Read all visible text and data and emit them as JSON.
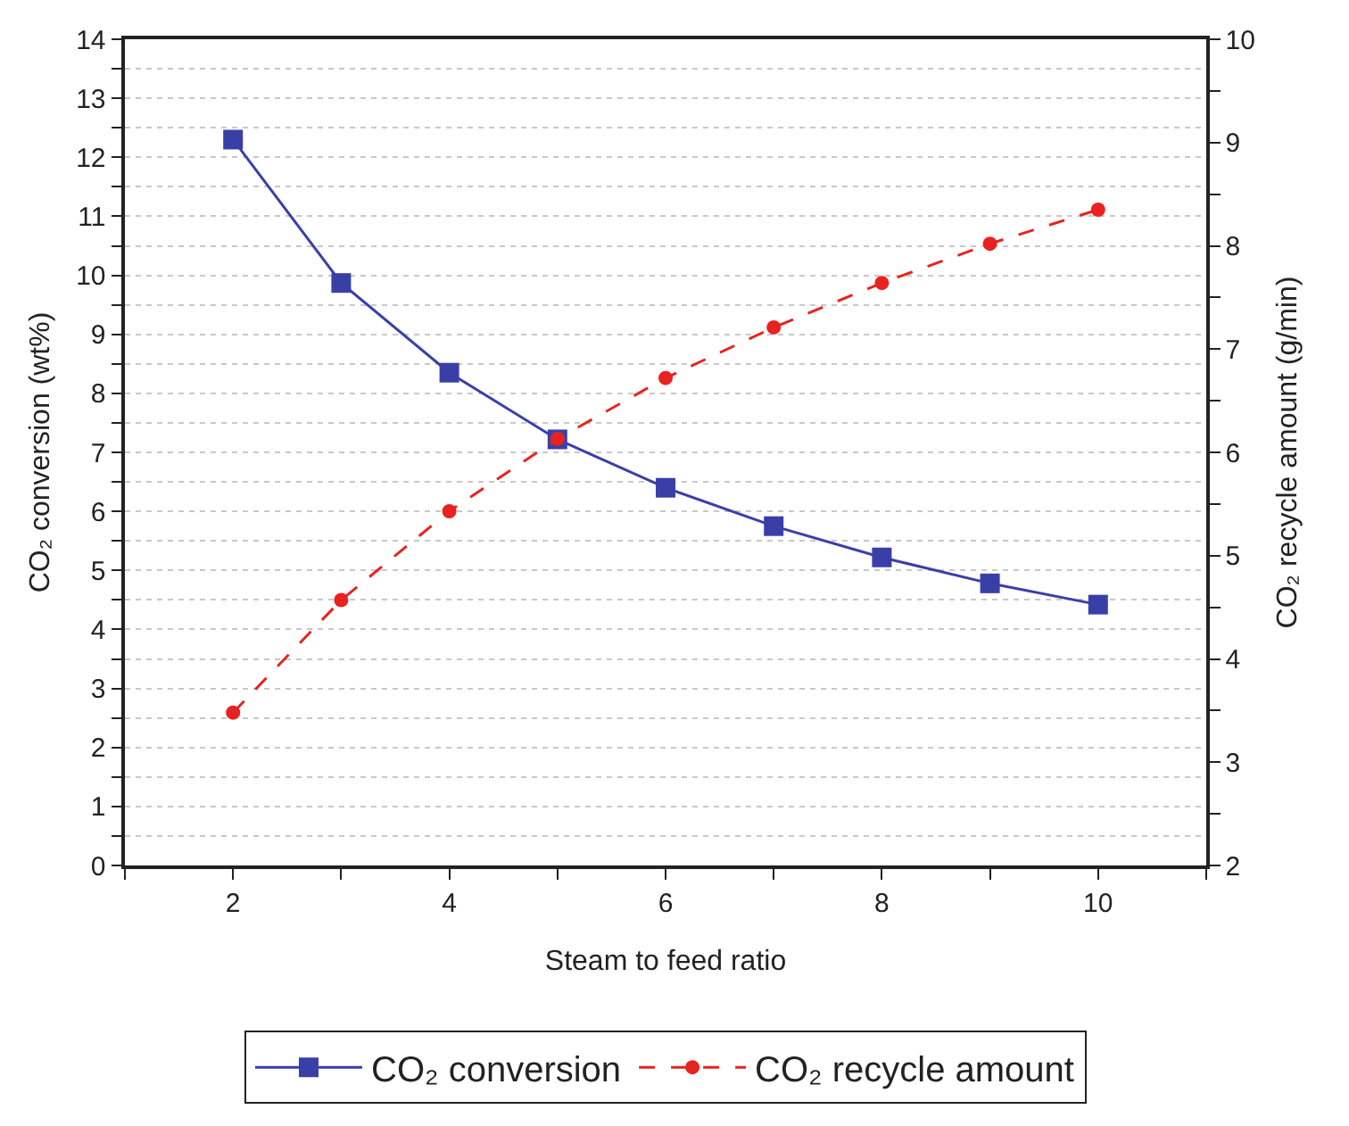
{
  "chart_data": {
    "type": "line",
    "xlabel": "Steam to feed ratio",
    "ylabel": "CO₂ conversion (wt%)",
    "y2label": "CO₂ recycle amount (g/min)",
    "x": [
      2,
      3,
      4,
      5,
      6,
      7,
      8,
      9,
      10
    ],
    "series": [
      {
        "name": "CO₂ conversion",
        "color": "#3a3fa8",
        "values": [
          12.3,
          9.87,
          8.35,
          7.22,
          6.4,
          5.75,
          5.22,
          4.78,
          4.42
        ],
        "marker": "square",
        "line_style": "solid"
      },
      {
        "name": "CO₂ recycle amount",
        "color": "#e8231f",
        "values": [
          3.48,
          4.57,
          5.43,
          6.13,
          6.72,
          7.21,
          7.64,
          8.02,
          8.35
        ],
        "marker": "circle",
        "line_style": "dashed",
        "axis": "y2"
      }
    ],
    "xlim": [
      1,
      11
    ],
    "xticks": [
      {
        "value": 1,
        "label": null
      },
      2,
      {
        "value": 3,
        "label": null
      },
      4,
      {
        "value": 5,
        "label": null
      },
      6,
      {
        "value": 7,
        "label": null
      },
      8,
      {
        "value": 9,
        "label": null
      },
      10,
      {
        "value": 11,
        "label": null
      }
    ],
    "ylim": [
      0,
      14
    ],
    "yticks": [
      0,
      {
        "value": 0.5,
        "label": null
      },
      1,
      {
        "value": 1.5,
        "label": null
      },
      2,
      {
        "value": 2.5,
        "label": null
      },
      3,
      {
        "value": 3.5,
        "label": null
      },
      4,
      {
        "value": 4.5,
        "label": null
      },
      5,
      {
        "value": 5.5,
        "label": null
      },
      6,
      {
        "value": 6.5,
        "label": null
      },
      7,
      {
        "value": 7.5,
        "label": null
      },
      8,
      {
        "value": 8.5,
        "label": null
      },
      9,
      {
        "value": 9.5,
        "label": null
      },
      10,
      {
        "value": 10.5,
        "label": null
      },
      11,
      {
        "value": 11.5,
        "label": null
      },
      12,
      {
        "value": 12.5,
        "label": null
      },
      13,
      {
        "value": 13.5,
        "label": null
      },
      14
    ],
    "y2lim": [
      2,
      10
    ],
    "y2ticks": [
      2,
      {
        "value": 2.5,
        "label": null
      },
      3,
      {
        "value": 3.5,
        "label": null
      },
      4,
      {
        "value": 4.5,
        "label": null
      },
      5,
      {
        "value": 5.5,
        "label": null
      },
      6,
      {
        "value": 6.5,
        "label": null
      },
      7,
      {
        "value": 7.5,
        "label": null
      },
      8,
      {
        "value": 8.5,
        "label": null
      },
      9,
      {
        "value": 9.5,
        "label": null
      },
      10
    ],
    "grid": "y",
    "legend": "bottom"
  }
}
